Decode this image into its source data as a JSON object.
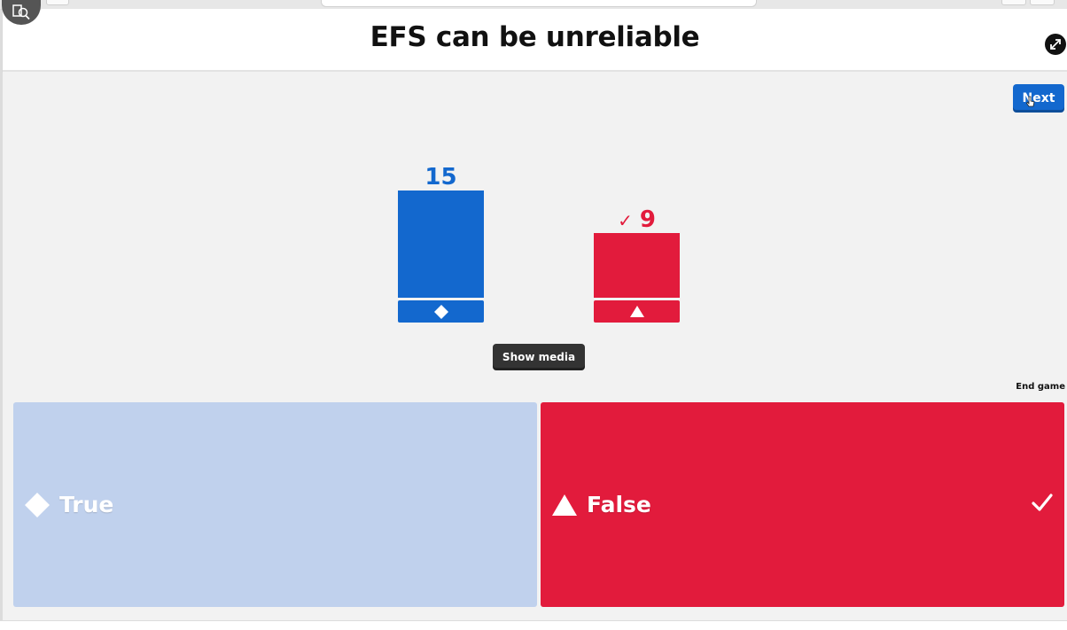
{
  "header": {
    "title": "EFS can be unreliable"
  },
  "controls": {
    "next_label": "Next",
    "show_media_label": "Show media",
    "end_game_label": "End game"
  },
  "chart_data": {
    "type": "bar",
    "categories": [
      "True",
      "False"
    ],
    "values": [
      15,
      9
    ],
    "series_colors": [
      "#1368ce",
      "#e21b3c"
    ],
    "shapes": [
      "diamond",
      "triangle"
    ],
    "correct": [
      false,
      true
    ],
    "value_labels": [
      "15",
      "9"
    ]
  },
  "answers": [
    {
      "label": "True",
      "shape": "diamond-icon",
      "color": "#c0d1ed",
      "correct": false
    },
    {
      "label": "False",
      "shape": "triangle-icon",
      "color": "#e21b3c",
      "correct": true
    }
  ],
  "colors": {
    "blue": "#1368ce",
    "red": "#e21b3c",
    "faded_blue": "#c0d1ed",
    "dark_button": "#333333"
  }
}
